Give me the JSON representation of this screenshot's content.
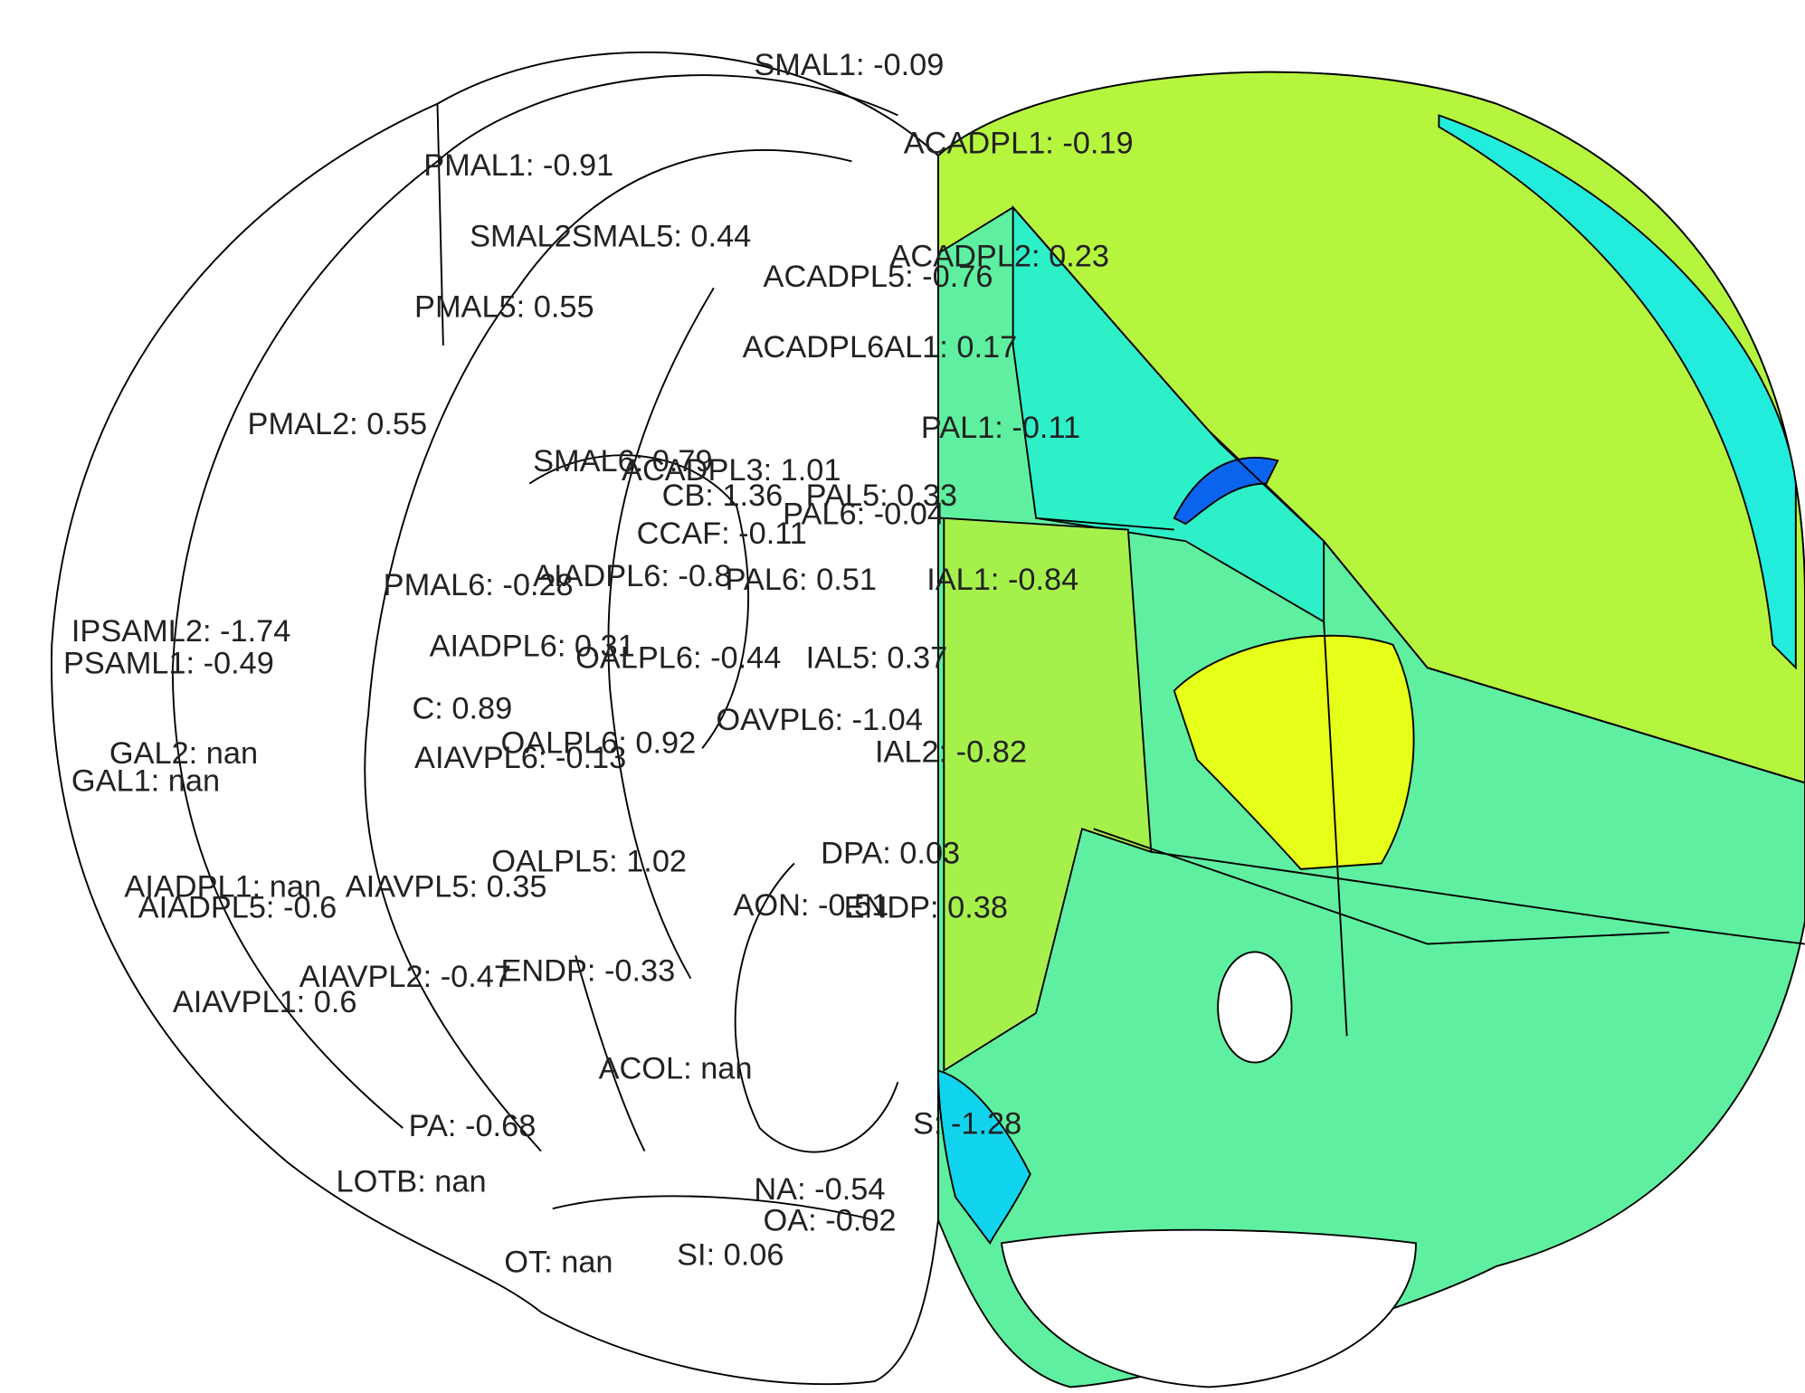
{
  "labels": [
    "SMAL1: -0.09",
    "ACADPL1: -0.19",
    "PMAL1: -0.91",
    "SMAL2SMAL5: 0.44",
    "ACADPL2: 0.23",
    "ACADPL5: -0.76",
    "PMAL5: 0.55",
    "ACADPL6AL1: 0.17",
    "PMAL2: 0.55",
    "PAL1: -0.11",
    "SMAL6: 0.79",
    "ACADPL3: 1.01",
    "CB: 1.36",
    "PAL5: 0.33",
    "PAL6: -0.04",
    "CCAF: -0.11",
    "AIADPL6: -0.8",
    "PAL6: 0.51",
    "IAL1: -0.84",
    "PMAL6: -0.28",
    "IPSAML2: -1.74",
    "PSAML1: -0.49",
    "AIADPL6: 0.31",
    "OALPL6: -0.44",
    "IAL5: 0.37",
    "C: 0.89",
    "OAVPL6: -1.04",
    "OALPL6: 0.92",
    "IAL2: -0.82",
    "AIAVPL6: -0.13",
    "GAL2: nan",
    "GAL1: nan",
    "OALPL5: 1.02",
    "DPA: 0.03",
    "AIADPL1: nan",
    "AIAVPL5: 0.35",
    "AIADPL5: -0.6",
    "AON: -0.51",
    "ENDP: 0.38",
    "AIAVPL2: -0.47",
    "ENDP: -0.33",
    "AIAVPL1: 0.6",
    "ACOL: nan",
    "PA: -0.68",
    "S: -1.28",
    "LOTB: nan",
    "NA: -0.54",
    "OA: -0.02",
    "OT: nan",
    "SI: 0.06"
  ]
}
